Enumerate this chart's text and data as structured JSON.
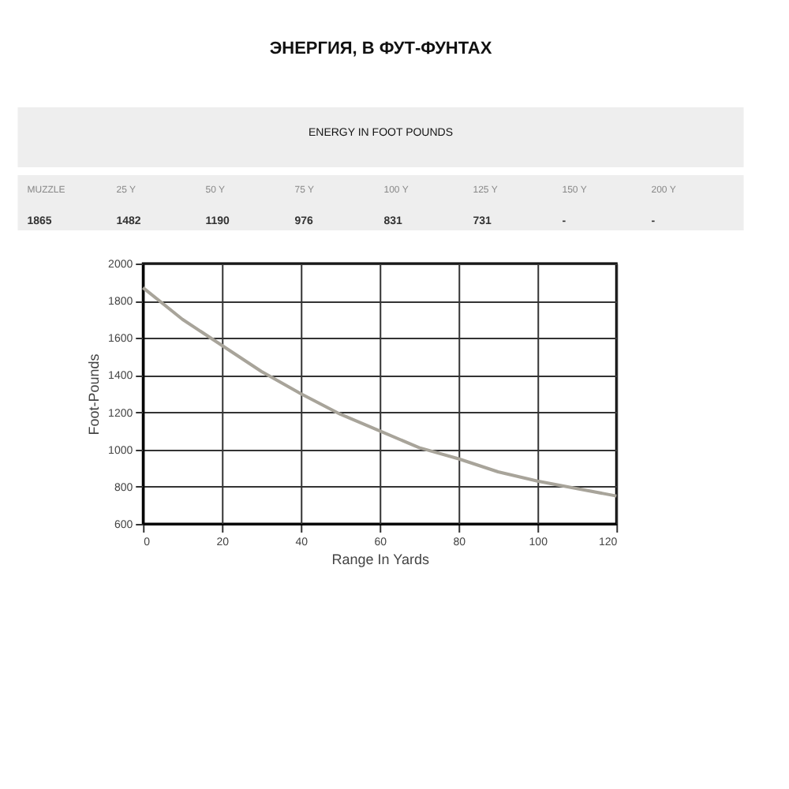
{
  "chart_data": {
    "type": "line",
    "title": "ЭНЕРГИЯ, В ФУТ-ФУНТАХ",
    "subtitle": "ENERGY IN FOOT POUNDS",
    "annotations": [
      "MUZZLE",
      "25 Y",
      "50 Y",
      "75 Y",
      "100 Y",
      "125 Y",
      "150 Y",
      "200 Y",
      "1865",
      "1482",
      "1190",
      "976",
      "831",
      "731",
      "-",
      "-"
    ],
    "xlabel": "Range In Yards",
    "ylabel": "Foot-Pounds",
    "x": [
      0,
      10,
      20,
      30,
      40,
      50,
      60,
      70,
      80,
      90,
      100,
      110,
      120
    ],
    "series": [
      {
        "color": "#a8a49a",
        "values": [
          1870,
          1700,
          1560,
          1420,
          1300,
          1190,
          1100,
          1010,
          950,
          880,
          830,
          790,
          750
        ]
      }
    ],
    "xlim": [
      0,
      120
    ],
    "xticks": [
      0,
      20,
      40,
      60,
      80,
      100,
      120
    ],
    "ylim": [
      600,
      2000
    ],
    "yticks": [
      600,
      800,
      1000,
      1200,
      1400,
      1600,
      1800,
      2000
    ],
    "grid": true,
    "marker": "none",
    "line_style": "solid"
  }
}
